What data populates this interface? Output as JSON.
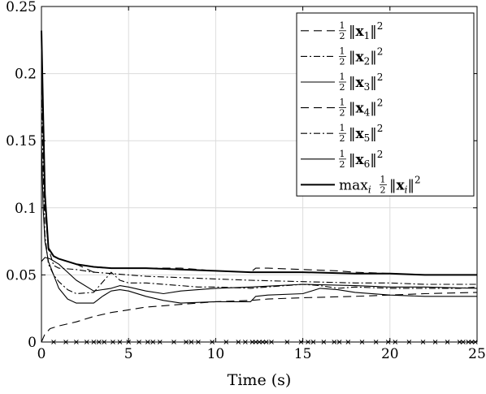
{
  "chart_data": {
    "type": "line",
    "title": "",
    "xlabel": "Time (s)",
    "ylabel": "",
    "xlim": [
      0,
      25
    ],
    "ylim": [
      0,
      0.25
    ],
    "xticks": [
      0,
      5,
      10,
      15,
      20,
      25
    ],
    "xtick_labels": [
      "0",
      "5",
      "10",
      "15",
      "20",
      "25"
    ],
    "yticks": [
      0,
      0.05,
      0.1,
      0.15,
      0.2,
      0.25
    ],
    "ytick_labels": [
      "0",
      "0.05",
      "0.1",
      "0.15",
      "0.2",
      "0.25"
    ],
    "grid": true,
    "legend_position": "top-right",
    "series": [
      {
        "name": "1/2 ||x_1||^2",
        "frac": "1/2",
        "norm_sym": "x",
        "sub": "1",
        "sup": "2",
        "dash": "10,6",
        "width": 1.1,
        "x": [
          0,
          0.2,
          0.5,
          1,
          2,
          3,
          4,
          5,
          6,
          7,
          8,
          10,
          12,
          13,
          15,
          18,
          20,
          22,
          25
        ],
        "y": [
          0.0,
          0.006,
          0.01,
          0.012,
          0.015,
          0.019,
          0.022,
          0.024,
          0.026,
          0.027,
          0.028,
          0.03,
          0.031,
          0.032,
          0.033,
          0.034,
          0.035,
          0.036,
          0.037
        ]
      },
      {
        "name": "1/2 ||x_2||^2",
        "frac": "1/2",
        "norm_sym": "x",
        "sub": "2",
        "sup": "2",
        "dash": "8,3,2,3",
        "width": 1.1,
        "x": [
          0,
          0.1,
          0.2,
          0.4,
          0.7,
          1,
          2,
          3,
          4,
          5,
          6,
          8,
          10,
          12,
          15,
          18,
          20,
          22,
          25
        ],
        "y": [
          0.23,
          0.17,
          0.11,
          0.07,
          0.057,
          0.055,
          0.054,
          0.052,
          0.051,
          0.05,
          0.049,
          0.048,
          0.047,
          0.046,
          0.045,
          0.044,
          0.044,
          0.043,
          0.043
        ]
      },
      {
        "name": "1/2 ||x_3||^2",
        "frac": "1/2",
        "norm_sym": "x",
        "sub": "3",
        "sup": "2",
        "dash": "",
        "width": 1.1,
        "x": [
          0,
          0.1,
          0.2,
          0.4,
          0.7,
          1,
          1.5,
          2,
          2.5,
          3,
          3.5,
          4,
          4.5,
          5,
          6,
          7,
          8,
          10,
          12,
          12.3,
          13,
          15,
          16,
          17,
          18,
          20,
          22,
          25
        ],
        "y": [
          0.15,
          0.1,
          0.075,
          0.06,
          0.05,
          0.04,
          0.032,
          0.029,
          0.029,
          0.029,
          0.034,
          0.038,
          0.039,
          0.038,
          0.034,
          0.031,
          0.029,
          0.03,
          0.03,
          0.034,
          0.035,
          0.036,
          0.04,
          0.039,
          0.037,
          0.035,
          0.034,
          0.034
        ]
      },
      {
        "name": "1/2 ||x_4||^2",
        "frac": "1/2",
        "norm_sym": "x",
        "sub": "4",
        "sup": "2",
        "dash": "10,6",
        "width": 1.1,
        "x": [
          0,
          0.1,
          0.2,
          0.4,
          0.7,
          1,
          2,
          2.5,
          3,
          3.3,
          4,
          5,
          6,
          7,
          8,
          9,
          10,
          12,
          12.3,
          13,
          15,
          17,
          18,
          20,
          22,
          25
        ],
        "y": [
          0.2,
          0.15,
          0.1,
          0.068,
          0.064,
          0.062,
          0.058,
          0.055,
          0.052,
          0.056,
          0.055,
          0.055,
          0.055,
          0.055,
          0.055,
          0.054,
          0.053,
          0.052,
          0.055,
          0.055,
          0.054,
          0.053,
          0.052,
          0.051,
          0.05,
          0.05
        ]
      },
      {
        "name": "1/2 ||x_5||^2",
        "frac": "1/2",
        "norm_sym": "x",
        "sub": "5",
        "sup": "2",
        "dash": "8,3,2,3",
        "width": 1.1,
        "x": [
          0,
          0.1,
          0.2,
          0.4,
          0.7,
          1,
          1.5,
          2,
          3,
          4,
          4.5,
          5,
          6,
          7,
          8,
          9,
          10,
          12,
          14,
          15,
          16,
          17,
          18,
          20,
          22,
          24,
          25
        ],
        "y": [
          0.18,
          0.13,
          0.08,
          0.058,
          0.05,
          0.045,
          0.039,
          0.036,
          0.037,
          0.052,
          0.046,
          0.044,
          0.044,
          0.043,
          0.042,
          0.041,
          0.041,
          0.04,
          0.042,
          0.043,
          0.042,
          0.04,
          0.041,
          0.04,
          0.04,
          0.04,
          0.041
        ]
      },
      {
        "name": "1/2 ||x_6||^2",
        "frac": "1/2",
        "norm_sym": "x",
        "sub": "6",
        "sup": "2",
        "dash": "",
        "width": 1.1,
        "x": [
          0,
          0.2,
          0.5,
          1,
          2,
          3,
          4,
          4.5,
          5,
          6,
          7,
          8,
          10,
          12,
          15,
          18,
          20,
          22,
          25
        ],
        "y": [
          0.06,
          0.063,
          0.062,
          0.058,
          0.046,
          0.038,
          0.04,
          0.042,
          0.041,
          0.038,
          0.036,
          0.038,
          0.04,
          0.041,
          0.043,
          0.042,
          0.041,
          0.041,
          0.04
        ]
      },
      {
        "name": "max_i 1/2 ||x_i||^2",
        "frac": "1/2",
        "norm_sym": "x",
        "sub": "i",
        "sup": "2",
        "prefix": "max",
        "prefix_sub": "i",
        "dash": "",
        "width": 2.0,
        "x": [
          0,
          0.1,
          0.2,
          0.4,
          0.7,
          1,
          2,
          3,
          4,
          5,
          6,
          8,
          10,
          12,
          15,
          18,
          20,
          22,
          25
        ],
        "y": [
          0.232,
          0.17,
          0.11,
          0.07,
          0.064,
          0.062,
          0.058,
          0.056,
          0.055,
          0.055,
          0.055,
          0.054,
          0.053,
          0.052,
          0.052,
          0.051,
          0.051,
          0.05,
          0.05
        ]
      }
    ],
    "markers": {
      "symbol": "x",
      "y": 0,
      "x": [
        0.7,
        1.4,
        2.0,
        2.6,
        3.0,
        3.3,
        3.6,
        4.1,
        4.5,
        5.0,
        5.6,
        6.1,
        6.4,
        6.8,
        7.6,
        8.3,
        8.6,
        9.0,
        9.8,
        10.6,
        11.3,
        11.7,
        12.1,
        12.3,
        12.5,
        12.7,
        12.9,
        13.2,
        14.1,
        14.9,
        15.3,
        15.6,
        16.2,
        16.8,
        17.1,
        17.6,
        18.4,
        19.2,
        19.9,
        20.3,
        21.1,
        21.9,
        22.6,
        23.3,
        24.0,
        24.2,
        24.5,
        24.7,
        24.9
      ]
    }
  }
}
